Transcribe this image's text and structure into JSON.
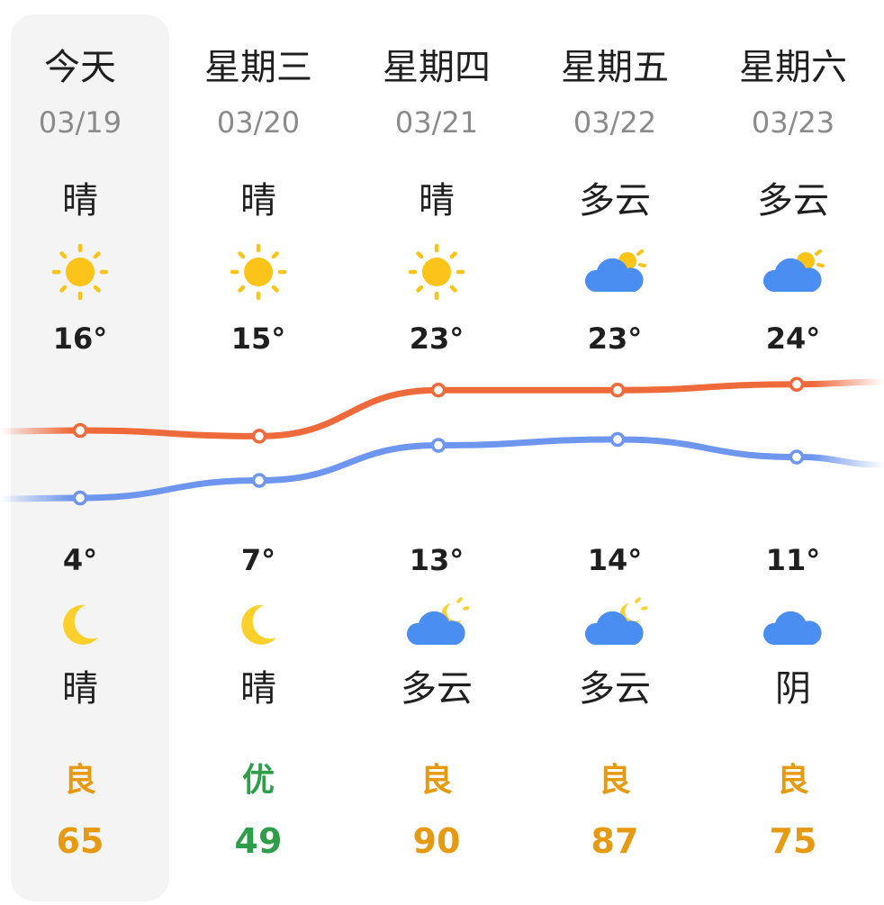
{
  "days": [
    {
      "day": "今天",
      "date": "03/19",
      "day_condition": "晴",
      "day_icon": "sun-icon",
      "high": 16,
      "high_label": "16°",
      "low": 4,
      "low_label": "4°",
      "night_icon": "moon-icon",
      "night_condition": "晴",
      "aqi_label": "良",
      "aqi_value": "65",
      "aqi_color": "#e59a12"
    },
    {
      "day": "星期三",
      "date": "03/20",
      "day_condition": "晴",
      "day_icon": "sun-icon",
      "high": 15,
      "high_label": "15°",
      "low": 7,
      "low_label": "7°",
      "night_icon": "moon-icon",
      "night_condition": "晴",
      "aqi_label": "优",
      "aqi_value": "49",
      "aqi_color": "#2e9e4b"
    },
    {
      "day": "星期四",
      "date": "03/21",
      "day_condition": "晴",
      "day_icon": "sun-icon",
      "high": 23,
      "high_label": "23°",
      "low": 13,
      "low_label": "13°",
      "night_icon": "cloud-moon-icon",
      "night_condition": "多云",
      "aqi_label": "良",
      "aqi_value": "90",
      "aqi_color": "#e59a12"
    },
    {
      "day": "星期五",
      "date": "03/22",
      "day_condition": "多云",
      "day_icon": "cloud-sun-icon",
      "high": 23,
      "high_label": "23°",
      "low": 14,
      "low_label": "14°",
      "night_icon": "cloud-moon-icon",
      "night_condition": "多云",
      "aqi_label": "良",
      "aqi_value": "87",
      "aqi_color": "#e59a12"
    },
    {
      "day": "星期六",
      "date": "03/23",
      "day_condition": "多云",
      "day_icon": "cloud-sun-icon",
      "high": 24,
      "high_label": "24°",
      "low": 11,
      "low_label": "11°",
      "night_icon": "cloud-icon",
      "night_condition": "阴",
      "aqi_label": "良",
      "aqi_value": "75",
      "aqi_color": "#e59a12"
    }
  ],
  "colors": {
    "high_line": "#ef6a3a",
    "low_line": "#6f96ee",
    "sun": "#fcc419",
    "moon": "#fcd02a",
    "cloud": "#4b8ef1",
    "aqi_good": "#e59a12",
    "aqi_excellent": "#2e9e4b"
  }
}
